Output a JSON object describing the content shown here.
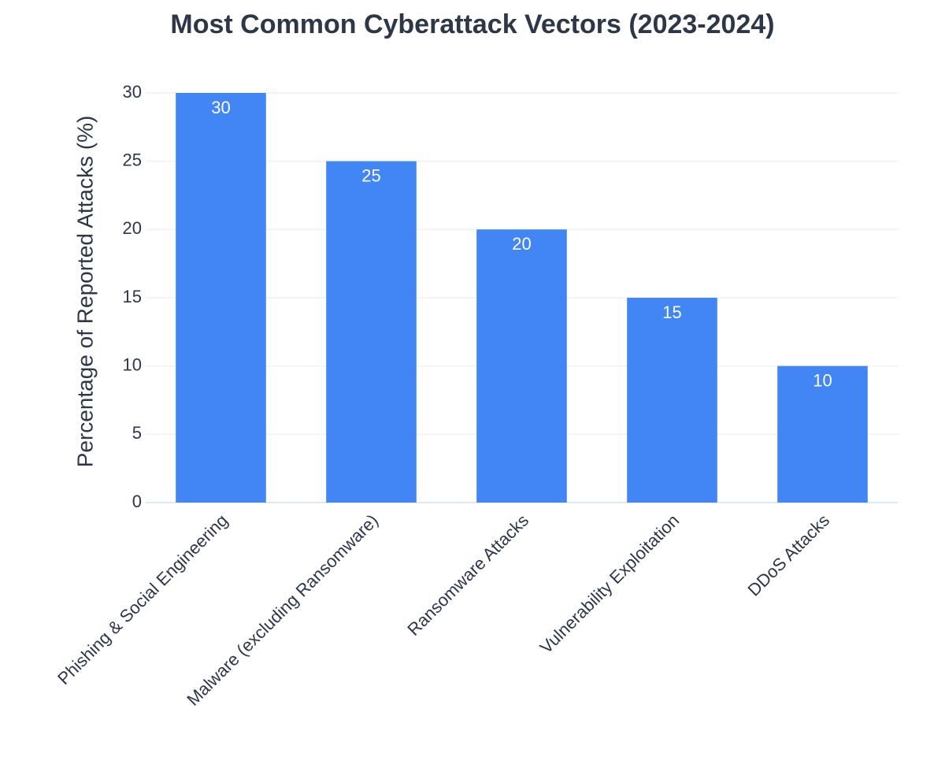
{
  "chart_data": {
    "type": "bar",
    "title": "Most Common Cyberattack Vectors (2023-2024)",
    "y_label": "Percentage of Reported Attacks (%)",
    "categories": [
      "Phishing & Social Engineering",
      "Malware (excluding Ransomware)",
      "Ransomware Attacks",
      "Vulnerability Exploitation",
      "DDoS Attacks"
    ],
    "values": [
      30,
      25,
      20,
      15,
      10
    ],
    "color": "#4285f4",
    "ylim": [
      0,
      30
    ],
    "yticks": [
      0,
      5,
      10,
      15,
      20,
      25,
      30
    ],
    "grid": true,
    "data_labels": true
  }
}
